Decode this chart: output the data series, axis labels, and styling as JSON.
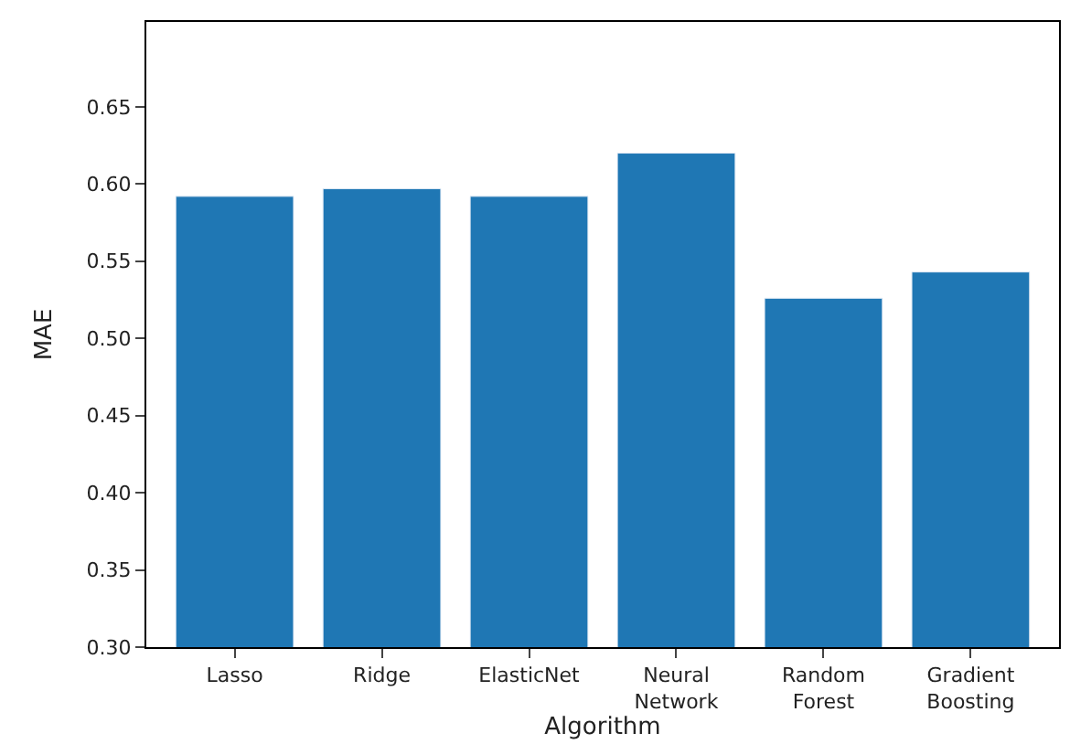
{
  "chart_data": {
    "type": "bar",
    "xlabel": "Algorithm",
    "ylabel": "MAE",
    "categories": [
      "Lasso",
      "Ridge",
      "ElasticNet",
      "Neural\nNetwork",
      "Random\nForest",
      "Gradient\nBoosting"
    ],
    "values": [
      0.592,
      0.597,
      0.592,
      0.62,
      0.526,
      0.543
    ],
    "color": "#1f77b4",
    "ylim": [
      0.3,
      0.705
    ],
    "yticks": [
      {
        "value": 0.3,
        "label": "0.30"
      },
      {
        "value": 0.35,
        "label": "0.35"
      },
      {
        "value": 0.4,
        "label": "0.40"
      },
      {
        "value": 0.45,
        "label": "0.45"
      },
      {
        "value": 0.5,
        "label": "0.50"
      },
      {
        "value": 0.55,
        "label": "0.55"
      },
      {
        "value": 0.6,
        "label": "0.60"
      },
      {
        "value": 0.65,
        "label": "0.65"
      }
    ]
  }
}
